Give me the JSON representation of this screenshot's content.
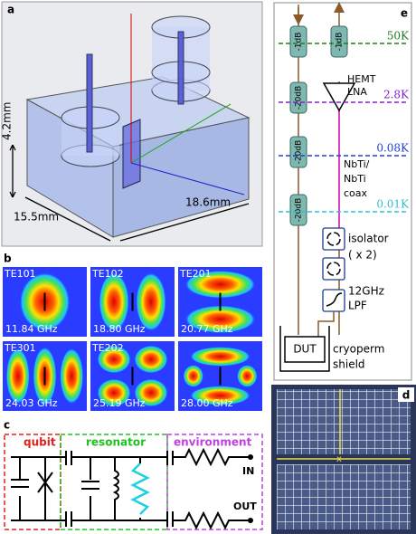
{
  "panel_a": {
    "label": "a",
    "height": "4.2mm",
    "length": "18.6mm",
    "width": "15.5mm"
  },
  "panel_b": {
    "label": "b",
    "modes": [
      {
        "name": "TE101",
        "freq": "11.84 GHz"
      },
      {
        "name": "TE102",
        "freq": "18.80 GHz"
      },
      {
        "name": "TE201",
        "freq": "20.77 GHz"
      },
      {
        "name": "TE301",
        "freq": "24.03 GHz"
      },
      {
        "name": "TE202",
        "freq": "25.19 GHz"
      },
      {
        "freq": "28.00 GHz"
      }
    ]
  },
  "panel_c": {
    "label": "c",
    "qubit": "qubit",
    "resonator": "resonator",
    "environment": "environment",
    "in": "IN",
    "out": "OUT"
  },
  "panel_d": {
    "label": "d"
  },
  "panel_e": {
    "label": "e",
    "attenuators_left": [
      "-1dB",
      "-20dB",
      "-20dB",
      "-20dB"
    ],
    "attenuators_right": [
      "-1dB"
    ],
    "stages": [
      "50K",
      "2.8K",
      "0.08K",
      "0.01K"
    ],
    "amplifier": [
      "HEMT",
      "LNA"
    ],
    "coax": [
      "NbTi/",
      "NbTi",
      "coax"
    ],
    "isolator": [
      "isolator",
      "( x 2)"
    ],
    "filter": [
      "12GHz",
      "LPF"
    ],
    "dut": "DUT",
    "shield": [
      "cryoperm",
      "shield"
    ]
  }
}
